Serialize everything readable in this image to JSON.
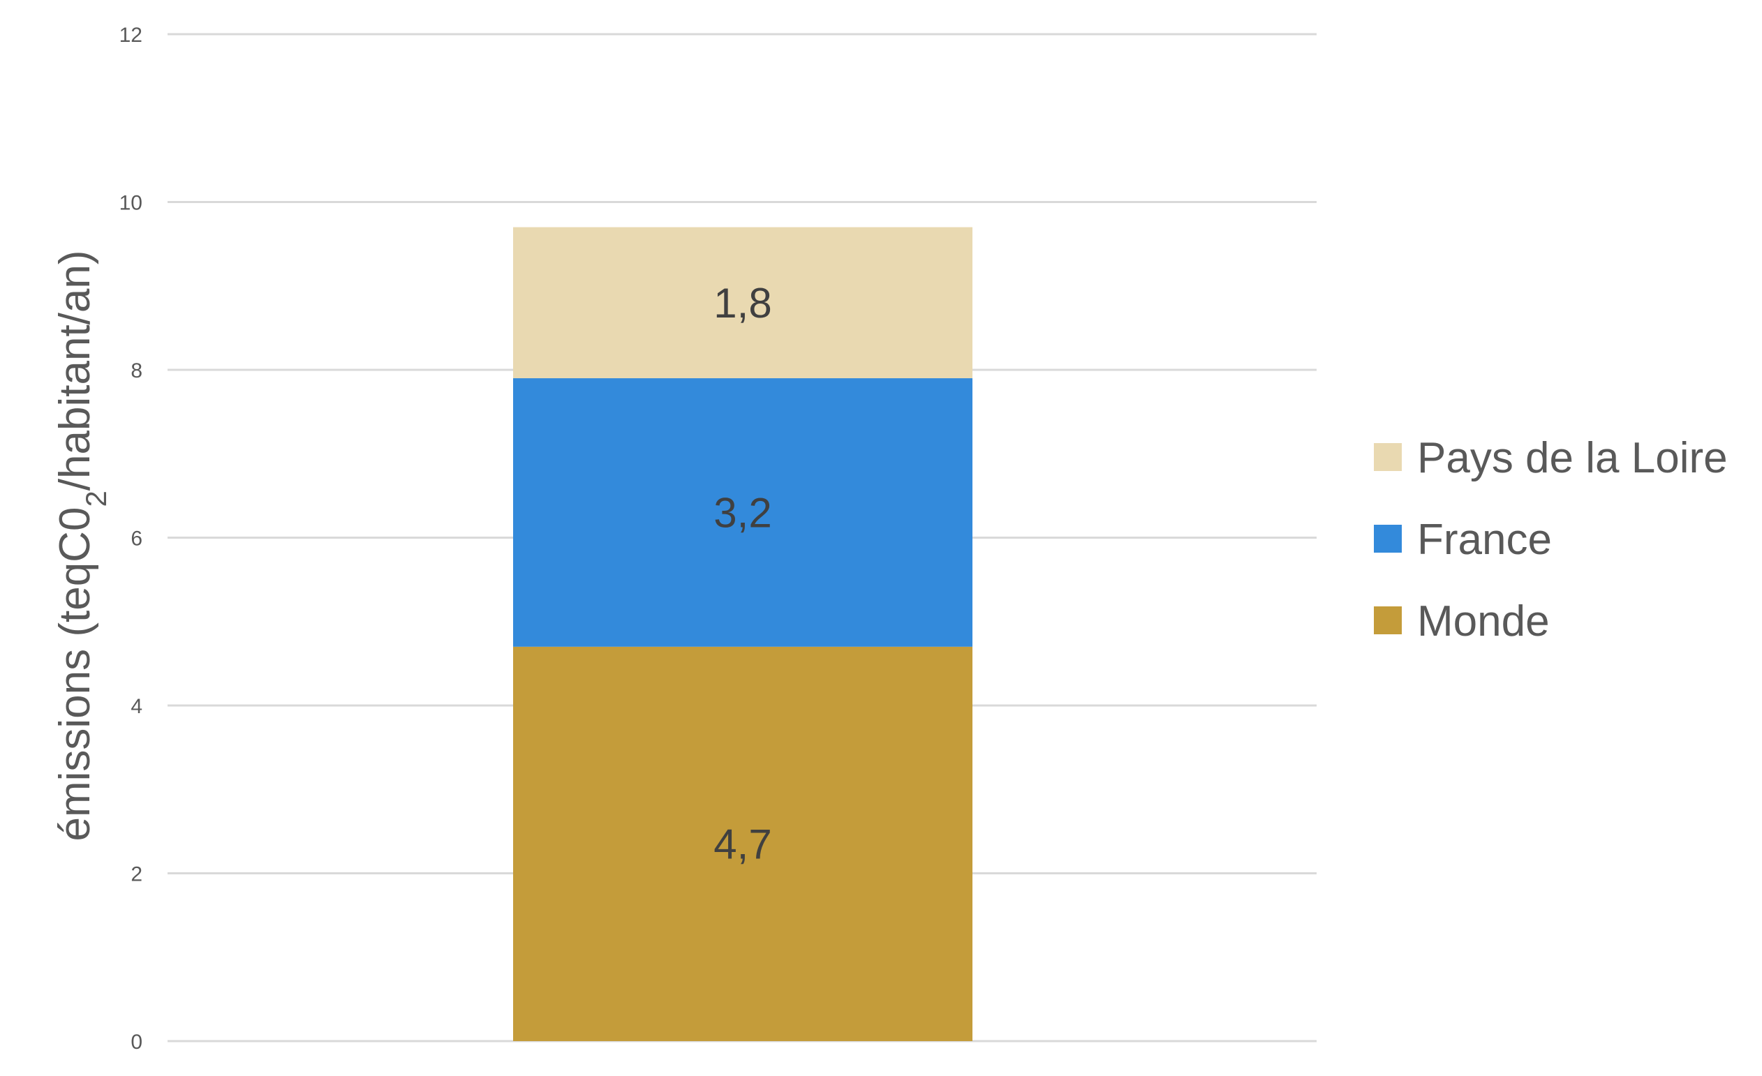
{
  "chart_data": {
    "type": "bar",
    "stacked": true,
    "categories": [
      ""
    ],
    "series": [
      {
        "name": "Monde",
        "values": [
          4.7
        ],
        "label": "4,7",
        "color": "#c49c3a"
      },
      {
        "name": "France",
        "values": [
          3.2
        ],
        "label": "3,2",
        "color": "#338adb"
      },
      {
        "name": "Pays de la Loire",
        "values": [
          1.8
        ],
        "label": "1,8",
        "color": "#e9d9b1"
      }
    ],
    "legend_order": [
      "Pays de la Loire",
      "France",
      "Monde"
    ],
    "title": "",
    "xlabel": "",
    "ylabel": {
      "prefix": "émissions (teqC0",
      "subscript": "2",
      "suffix": "/habitant/an)"
    },
    "ylim": [
      0,
      12
    ],
    "yticks": [
      0,
      2,
      4,
      6,
      8,
      10,
      12
    ],
    "grid": true,
    "legend_position": "right"
  }
}
